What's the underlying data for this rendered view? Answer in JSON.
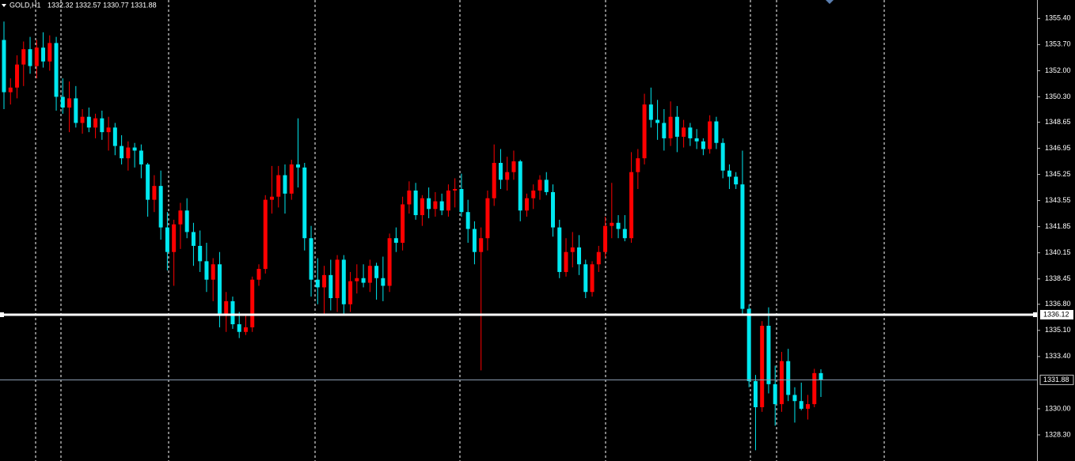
{
  "chart_data": {
    "type": "candlestick",
    "header": {
      "symbol": "GOLD,H1",
      "ohlc": "1332.32 1332.57 1330.77 1331.88"
    },
    "up_color": "#ff0000",
    "down_color": "#00e8f0",
    "ylim": [
      1326.6,
      1356.6
    ],
    "yticks": [
      {
        "value": 1355.4,
        "label": "1355.40"
      },
      {
        "value": 1353.7,
        "label": "1353.70"
      },
      {
        "value": 1352,
        "label": "1352.00"
      },
      {
        "value": 1350.3,
        "label": "1350.30"
      },
      1348.65,
      1346.95,
      1345.25,
      1343.55,
      1341.85,
      1340.15,
      1338.45,
      {
        "value": 1336.8,
        "label": "1336.80"
      },
      {
        "value": 1335.1,
        "label": "1335.10"
      },
      {
        "value": 1333.4,
        "label": "1333.40"
      },
      {
        "value": 1330,
        "label": "1330.00"
      },
      {
        "value": 1328.3,
        "label": "1328.30"
      }
    ],
    "hline": 1336.12,
    "bid": 1331.88,
    "candles": [
      [
        1354.0,
        1355.2,
        1349.5,
        1350.6
      ],
      [
        1350.6,
        1351.5,
        1349.8,
        1350.9
      ],
      [
        1350.9,
        1353.0,
        1350.2,
        1352.4
      ],
      [
        1352.4,
        1353.9,
        1351.0,
        1353.4
      ],
      [
        1353.4,
        1354.2,
        1351.8,
        1352.3
      ],
      [
        1352.3,
        1354.0,
        1351.5,
        1353.5
      ],
      [
        1353.5,
        1354.5,
        1352.2,
        1352.6
      ],
      [
        1352.6,
        1354.3,
        1352.0,
        1353.8
      ],
      [
        1353.8,
        1354.2,
        1349.4,
        1350.3
      ],
      [
        1350.3,
        1351.5,
        1349.2,
        1349.6
      ],
      [
        1349.6,
        1351.3,
        1348.0,
        1350.2
      ],
      [
        1350.2,
        1351.0,
        1348.3,
        1348.6
      ],
      [
        1348.6,
        1349.5,
        1347.9,
        1349.0
      ],
      [
        1349.0,
        1349.6,
        1348.0,
        1348.3
      ],
      [
        1348.3,
        1349.2,
        1347.6,
        1348.9
      ],
      [
        1348.9,
        1349.4,
        1347.5,
        1348.0
      ],
      [
        1348.0,
        1349.0,
        1346.8,
        1348.3
      ],
      [
        1348.3,
        1348.6,
        1346.5,
        1347.1
      ],
      [
        1347.1,
        1347.8,
        1345.9,
        1346.3
      ],
      [
        1346.3,
        1347.4,
        1345.5,
        1347.0
      ],
      [
        1347.0,
        1347.3,
        1345.7,
        1346.8
      ],
      [
        1346.8,
        1347.2,
        1345.0,
        1345.9
      ],
      [
        1345.9,
        1346.0,
        1342.5,
        1343.6
      ],
      [
        1343.6,
        1345.2,
        1342.8,
        1344.5
      ],
      [
        1344.5,
        1345.5,
        1341.0,
        1341.8
      ],
      [
        1341.8,
        1342.8,
        1339.0,
        1340.2
      ],
      [
        1340.2,
        1342.3,
        1338.0,
        1342.0
      ],
      [
        1342.0,
        1343.4,
        1340.4,
        1342.9
      ],
      [
        1342.9,
        1343.7,
        1341.1,
        1341.5
      ],
      [
        1341.5,
        1342.1,
        1339.3,
        1340.6
      ],
      [
        1340.6,
        1341.6,
        1338.9,
        1339.6
      ],
      [
        1339.6,
        1340.8,
        1337.6,
        1338.4
      ],
      [
        1338.4,
        1339.8,
        1337.0,
        1339.4
      ],
      [
        1339.4,
        1340.2,
        1335.3,
        1336.2
      ],
      [
        1336.2,
        1337.6,
        1335.0,
        1337.0
      ],
      [
        1337.0,
        1337.3,
        1335.2,
        1335.5
      ],
      [
        1335.5,
        1336.3,
        1334.6,
        1335.0
      ],
      [
        1335.0,
        1336.1,
        1334.8,
        1335.3
      ],
      [
        1335.3,
        1338.6,
        1335.0,
        1338.4
      ],
      [
        1338.4,
        1339.4,
        1338.0,
        1339.1
      ],
      [
        1339.1,
        1343.9,
        1338.8,
        1343.6
      ],
      [
        1343.6,
        1345.8,
        1342.7,
        1343.8
      ],
      [
        1343.8,
        1345.8,
        1343.1,
        1345.2
      ],
      [
        1345.2,
        1345.9,
        1342.7,
        1344.0
      ],
      [
        1344.0,
        1346.2,
        1343.6,
        1345.9
      ],
      [
        1345.9,
        1348.9,
        1344.4,
        1345.7
      ],
      [
        1345.7,
        1346.0,
        1340.3,
        1341.1
      ],
      [
        1341.1,
        1341.9,
        1337.3,
        1338.4
      ],
      [
        1338.4,
        1339.8,
        1336.8,
        1337.9
      ],
      [
        1337.9,
        1339.3,
        1336.1,
        1338.7
      ],
      [
        1338.7,
        1339.7,
        1336.4,
        1337.2
      ],
      [
        1337.2,
        1340.0,
        1336.3,
        1339.7
      ],
      [
        1339.7,
        1340.0,
        1336.1,
        1336.8
      ],
      [
        1336.8,
        1338.9,
        1336.3,
        1338.3
      ],
      [
        1338.3,
        1339.4,
        1337.5,
        1338.5
      ],
      [
        1338.5,
        1339.4,
        1337.9,
        1338.2
      ],
      [
        1338.2,
        1339.7,
        1337.6,
        1339.3
      ],
      [
        1339.3,
        1339.5,
        1337.1,
        1338.5
      ],
      [
        1338.5,
        1339.9,
        1337.0,
        1338.0
      ],
      [
        1338.0,
        1341.4,
        1337.6,
        1341.1
      ],
      [
        1341.1,
        1341.8,
        1340.2,
        1340.8
      ],
      [
        1340.8,
        1343.8,
        1340.3,
        1343.3
      ],
      [
        1343.3,
        1344.8,
        1342.7,
        1344.2
      ],
      [
        1344.2,
        1344.7,
        1342.3,
        1342.6
      ],
      [
        1342.6,
        1343.9,
        1341.9,
        1343.7
      ],
      [
        1343.7,
        1344.4,
        1342.4,
        1343.0
      ],
      [
        1343.0,
        1344.1,
        1342.5,
        1343.5
      ],
      [
        1343.5,
        1344.0,
        1342.6,
        1342.9
      ],
      [
        1342.9,
        1344.6,
        1342.5,
        1344.2
      ],
      [
        1344.2,
        1345.0,
        1343.1,
        1344.3
      ],
      [
        1344.3,
        1345.3,
        1342.5,
        1342.8
      ],
      [
        1342.8,
        1343.6,
        1340.8,
        1341.7
      ],
      [
        1341.7,
        1342.2,
        1339.4,
        1340.2
      ],
      [
        1340.2,
        1341.8,
        1332.5,
        1341.1
      ],
      [
        1341.1,
        1344.2,
        1340.3,
        1343.7
      ],
      [
        1343.7,
        1347.2,
        1343.2,
        1346.0
      ],
      [
        1346.0,
        1346.9,
        1344.3,
        1344.9
      ],
      [
        1344.9,
        1346.4,
        1344.2,
        1345.4
      ],
      [
        1345.4,
        1346.8,
        1344.9,
        1346.1
      ],
      [
        1346.1,
        1346.2,
        1342.2,
        1342.9
      ],
      [
        1342.9,
        1344.0,
        1342.5,
        1343.7
      ],
      [
        1343.7,
        1344.6,
        1343.0,
        1344.2
      ],
      [
        1344.2,
        1345.2,
        1343.6,
        1344.9
      ],
      [
        1344.9,
        1345.4,
        1343.9,
        1344.1
      ],
      [
        1344.1,
        1344.6,
        1341.2,
        1341.8
      ],
      [
        1341.8,
        1342.3,
        1338.5,
        1338.9
      ],
      [
        1338.9,
        1341.1,
        1338.6,
        1340.2
      ],
      [
        1340.2,
        1341.5,
        1339.2,
        1340.5
      ],
      [
        1340.5,
        1341.3,
        1338.7,
        1339.4
      ],
      [
        1339.4,
        1339.7,
        1337.2,
        1337.6
      ],
      [
        1337.6,
        1339.6,
        1337.3,
        1339.4
      ],
      [
        1339.4,
        1340.6,
        1338.9,
        1340.2
      ],
      [
        1340.2,
        1342.5,
        1339.8,
        1341.9
      ],
      [
        1341.9,
        1344.7,
        1341.1,
        1342.1
      ],
      [
        1342.1,
        1342.6,
        1341.1,
        1341.7
      ],
      [
        1341.7,
        1342.6,
        1340.9,
        1341.1
      ],
      [
        1341.1,
        1346.7,
        1340.8,
        1345.4
      ],
      [
        1345.4,
        1346.9,
        1344.3,
        1346.3
      ],
      [
        1346.3,
        1350.5,
        1345.9,
        1349.8
      ],
      [
        1349.8,
        1350.9,
        1348.3,
        1348.8
      ],
      [
        1348.8,
        1350.1,
        1347.5,
        1348.6
      ],
      [
        1348.6,
        1349.5,
        1346.8,
        1347.6
      ],
      [
        1347.6,
        1350.0,
        1347.1,
        1349.0
      ],
      [
        1349.0,
        1349.7,
        1346.7,
        1347.7
      ],
      [
        1347.7,
        1348.8,
        1347.0,
        1348.3
      ],
      [
        1348.3,
        1348.6,
        1347.1,
        1347.6
      ],
      [
        1347.6,
        1348.2,
        1346.9,
        1347.4
      ],
      [
        1347.4,
        1347.6,
        1346.5,
        1346.9
      ],
      [
        1346.9,
        1349.1,
        1346.6,
        1348.7
      ],
      [
        1348.7,
        1349.0,
        1346.9,
        1347.3
      ],
      [
        1347.3,
        1347.6,
        1345.0,
        1345.5
      ],
      [
        1345.5,
        1345.9,
        1344.3,
        1345.1
      ],
      [
        1345.1,
        1345.4,
        1344.3,
        1344.6
      ],
      [
        1344.6,
        1346.8,
        1336.2,
        1336.5
      ],
      [
        1336.5,
        1336.8,
        1331.4,
        1331.8
      ],
      [
        1331.8,
        1332.2,
        1327.3,
        1330.1
      ],
      [
        1330.1,
        1335.7,
        1329.8,
        1335.4
      ],
      [
        1335.4,
        1336.6,
        1331.0,
        1331.6
      ],
      [
        1331.6,
        1332.8,
        1328.9,
        1330.3
      ],
      [
        1330.3,
        1333.7,
        1329.8,
        1333.1
      ],
      [
        1333.1,
        1333.9,
        1330.5,
        1330.9
      ],
      [
        1330.9,
        1331.4,
        1329.1,
        1330.5
      ],
      [
        1330.5,
        1331.7,
        1329.9,
        1330.0
      ],
      [
        1330.0,
        1330.9,
        1329.3,
        1330.3
      ],
      [
        1330.3,
        1332.6,
        1330.1,
        1332.32
      ],
      [
        1332.32,
        1332.57,
        1330.77,
        1331.88
      ]
    ]
  }
}
